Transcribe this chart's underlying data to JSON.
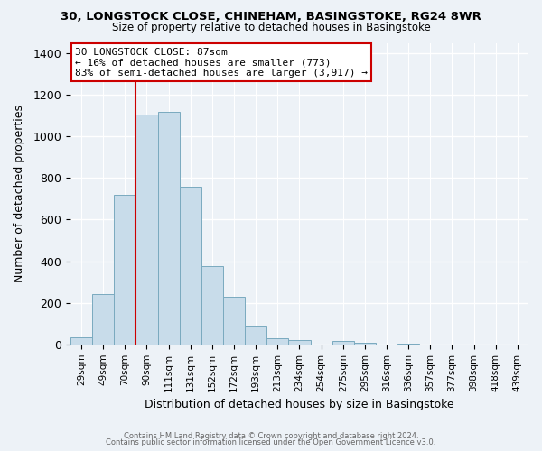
{
  "title": "30, LONGSTOCK CLOSE, CHINEHAM, BASINGSTOKE, RG24 8WR",
  "subtitle": "Size of property relative to detached houses in Basingstoke",
  "xlabel": "Distribution of detached houses by size in Basingstoke",
  "ylabel": "Number of detached properties",
  "bin_labels": [
    "29sqm",
    "49sqm",
    "70sqm",
    "90sqm",
    "111sqm",
    "131sqm",
    "152sqm",
    "172sqm",
    "193sqm",
    "213sqm",
    "234sqm",
    "254sqm",
    "275sqm",
    "295sqm",
    "316sqm",
    "336sqm",
    "357sqm",
    "377sqm",
    "398sqm",
    "418sqm",
    "439sqm"
  ],
  "bar_heights": [
    35,
    240,
    720,
    1105,
    1120,
    760,
    375,
    230,
    90,
    30,
    20,
    0,
    15,
    10,
    0,
    5,
    0,
    0,
    0,
    0,
    0
  ],
  "bar_color": "#c8dcea",
  "bar_edge_color": "#7aaabf",
  "vline_x": 2.5,
  "vline_color": "#cc0000",
  "annotation_line1": "30 LONGSTOCK CLOSE: 87sqm",
  "annotation_line2": "← 16% of detached houses are smaller (773)",
  "annotation_line3": "83% of semi-detached houses are larger (3,917) →",
  "annotation_box_color": "#ffffff",
  "annotation_box_edge": "#cc0000",
  "ylim": [
    0,
    1450
  ],
  "yticks": [
    0,
    200,
    400,
    600,
    800,
    1000,
    1200,
    1400
  ],
  "footer1": "Contains HM Land Registry data © Crown copyright and database right 2024.",
  "footer2": "Contains public sector information licensed under the Open Government Licence v3.0.",
  "bg_color": "#edf2f7"
}
